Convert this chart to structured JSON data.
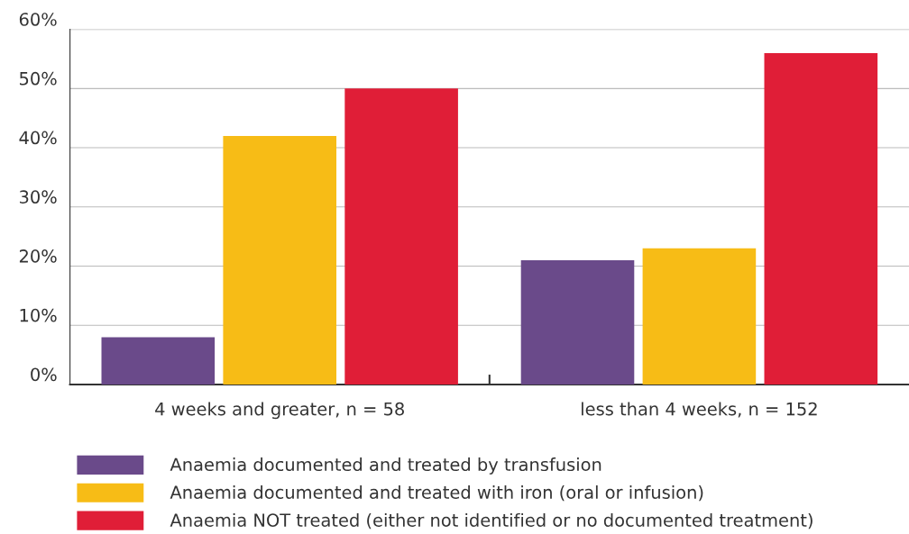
{
  "chart_data": {
    "type": "bar",
    "categories": [
      "4 weeks and greater, n = 58",
      "less than 4 weeks, n = 152"
    ],
    "series": [
      {
        "name": "Anaemia documented and treated by transfusion",
        "color": "#6a4a8a",
        "values": [
          8,
          21
        ]
      },
      {
        "name": "Anaemia documented and treated with iron (oral or infusion)",
        "color": "#f7bc16",
        "values": [
          42,
          23
        ]
      },
      {
        "name": "Anaemia NOT treated (either not identified or no documented treatment)",
        "color": "#e01e37",
        "values": [
          50,
          56
        ]
      }
    ],
    "ylim": [
      0,
      60
    ],
    "yticks": [
      {
        "value": 0,
        "label": "0%"
      },
      {
        "value": 10,
        "label": "10%"
      },
      {
        "value": 20,
        "label": "20%"
      },
      {
        "value": 30,
        "label": "30%"
      },
      {
        "value": 40,
        "label": "40%"
      },
      {
        "value": 50,
        "label": "50%"
      },
      {
        "value": 60,
        "label": "60%"
      }
    ],
    "grid": "y",
    "legend": "bottom"
  }
}
